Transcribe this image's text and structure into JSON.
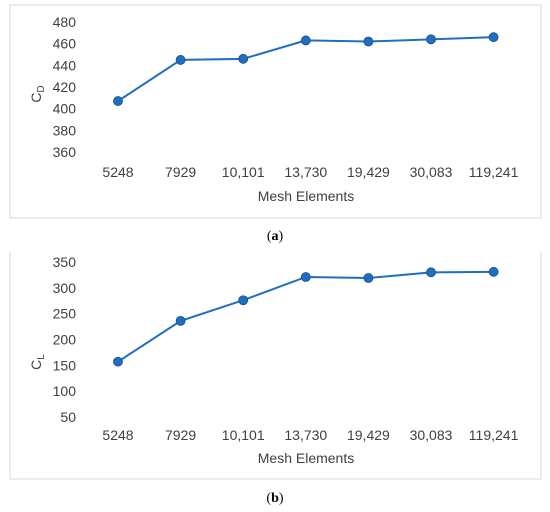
{
  "chart_data": [
    {
      "type": "line",
      "caption": "a",
      "categories": [
        "5248",
        "7929",
        "10,101",
        "13,730",
        "19,429",
        "30,083",
        "119,241"
      ],
      "values": [
        407,
        445,
        446,
        463,
        462,
        464,
        466
      ],
      "xlabel": "Mesh Elements",
      "ylabel": "C",
      "ylabel_sub": "D",
      "ylim": [
        360,
        480
      ],
      "yticks": [
        "360",
        "380",
        "400",
        "420",
        "440",
        "460",
        "480"
      ],
      "grid": false,
      "line_color": "#1f6fc0"
    },
    {
      "type": "line",
      "caption": "b",
      "categories": [
        "5248",
        "7929",
        "10,101",
        "13,730",
        "19,429",
        "30,083",
        "119,241"
      ],
      "values": [
        157,
        236,
        276,
        321,
        319,
        330,
        331
      ],
      "xlabel": "Mesh Elements",
      "ylabel": "C",
      "ylabel_sub": "L",
      "ylim": [
        50,
        350
      ],
      "yticks": [
        "50",
        "100",
        "150",
        "200",
        "250",
        "300",
        "350"
      ],
      "grid": false,
      "line_color": "#1f6fc0"
    }
  ]
}
